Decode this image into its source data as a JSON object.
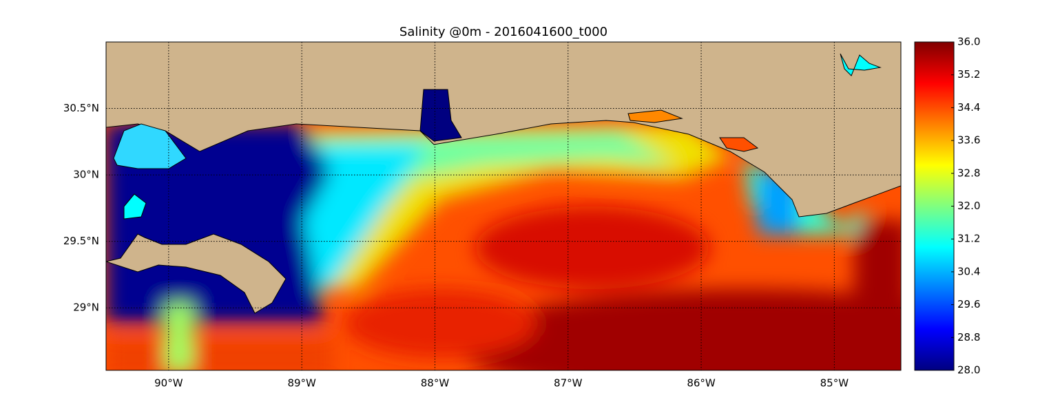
{
  "chart_data": {
    "type": "map",
    "title": "Salinity @0m - 2016041600_t000",
    "xlim": [
      -90.47,
      -84.5
    ],
    "xticks": [
      {
        "value": -90,
        "label": "90°W"
      },
      {
        "value": -89,
        "label": "89°W"
      },
      {
        "value": -88,
        "label": "88°W"
      },
      {
        "value": -87,
        "label": "87°W"
      },
      {
        "value": -86,
        "label": "86°W"
      },
      {
        "value": -85,
        "label": "85°W"
      }
    ],
    "ylim": [
      28.53,
      31.0
    ],
    "yticks": [
      {
        "value": 29,
        "label": "29°N"
      },
      {
        "value": 29.5,
        "label": "29.5°N"
      },
      {
        "value": 30,
        "label": "30°N"
      },
      {
        "value": 30.5,
        "label": "30.5°N"
      }
    ],
    "grid": true,
    "colorbar": {
      "lim": [
        28.0,
        36.0
      ],
      "ticks": [
        {
          "value": 28.0,
          "label": "28.0"
        },
        {
          "value": 28.8,
          "label": "28.8"
        },
        {
          "value": 29.6,
          "label": "29.6"
        },
        {
          "value": 30.4,
          "label": "30.4"
        },
        {
          "value": 31.2,
          "label": "31.2"
        },
        {
          "value": 32.0,
          "label": "32.0"
        },
        {
          "value": 32.8,
          "label": "32.8"
        },
        {
          "value": 33.6,
          "label": "33.6"
        },
        {
          "value": 34.4,
          "label": "34.4"
        },
        {
          "value": 35.2,
          "label": "35.2"
        },
        {
          "value": 36.0,
          "label": "36.0"
        }
      ]
    }
  }
}
